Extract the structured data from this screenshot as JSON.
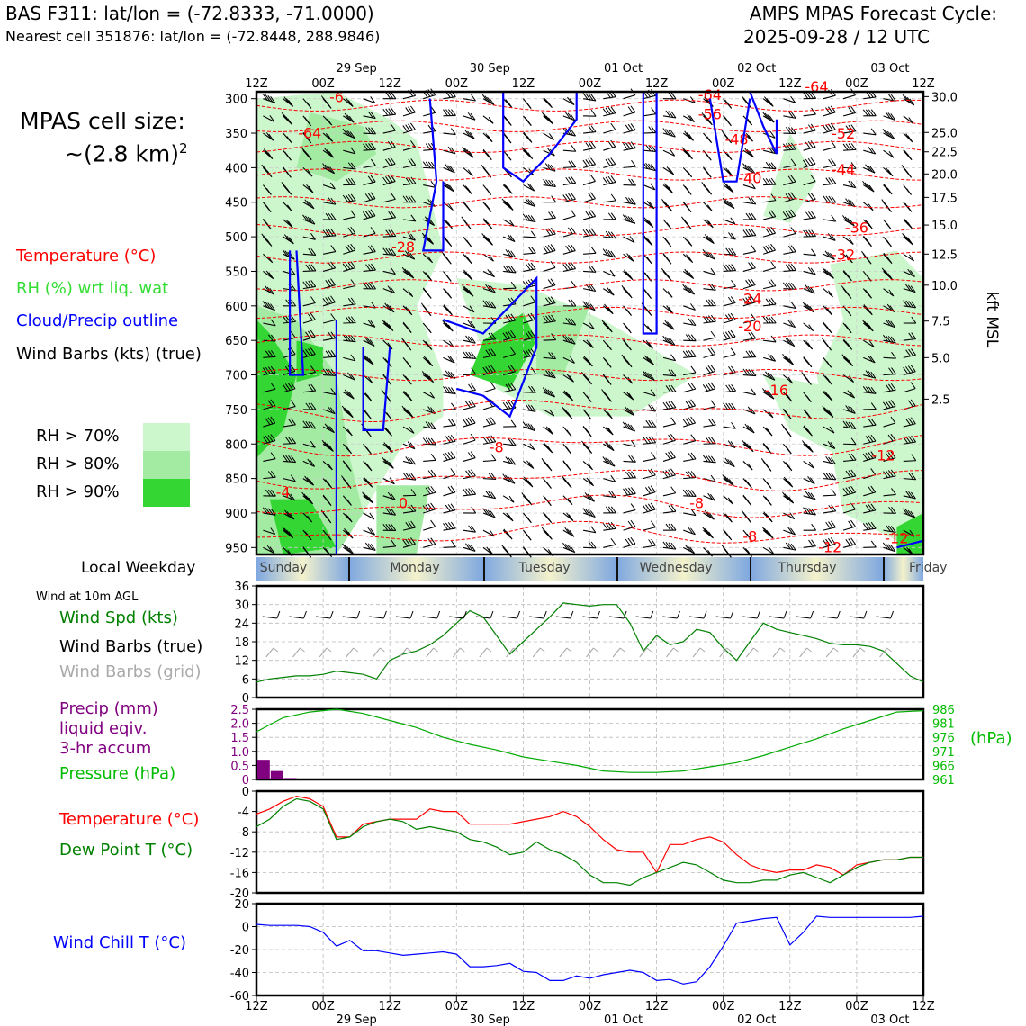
{
  "header": {
    "station_line": "BAS F311: lat/lon = (-72.8333, -71.0000)",
    "cell_line": "Nearest cell 351876: lat/lon = (-72.8448, 288.9846)",
    "forecast_label": "AMPS MPAS Forecast Cycle:",
    "forecast_cycle": "2025-09-28 / 12 UTC"
  },
  "left_panel": {
    "cell_size_label": "MPAS cell size:",
    "cell_size_value": "~(2.8 km)",
    "cell_size_exp": "2",
    "legend": {
      "temperature": "Temperature (°C)",
      "rh": "RH (%) wrt liq. wat",
      "cloud": "Cloud/Precip outline",
      "wind": "Wind Barbs (kts) (true)"
    },
    "rh_key": [
      {
        "label": "RH > 70%",
        "color": "#ccf7cc"
      },
      {
        "label": "RH > 80%",
        "color": "#a3eaa3"
      },
      {
        "label": "RH > 90%",
        "color": "#33d633"
      }
    ],
    "local_weekday_label": "Local Weekday",
    "wind_10m_label": "Wind at 10m AGL",
    "wind_panel_legend": {
      "speed": "Wind Spd (kts)",
      "barbs_true": "Wind Barbs (true)",
      "barbs_grid": "Wind Barbs (grid)"
    },
    "precip_legend": {
      "line1": "Precip (mm)",
      "line2": "liquid eqiv.",
      "line3": "3-hr accum",
      "pressure": "Pressure (hPa)"
    },
    "temp_legend": {
      "temp": "Temperature (°C)",
      "dew": "Dew Point T (°C)"
    },
    "windchill_legend": "Wind Chill T (°C)"
  },
  "time_axis": {
    "hour_labels": [
      "12Z",
      "00Z",
      "12Z",
      "00Z",
      "12Z",
      "00Z",
      "12Z",
      "00Z",
      "12Z",
      "00Z",
      "12Z"
    ],
    "date_labels": [
      "29 Sep",
      "30 Sep",
      "01 Oct",
      "02 Oct",
      "03 Oct"
    ]
  },
  "weekdays": [
    "Sunday",
    "Monday",
    "Tuesday",
    "Wednesday",
    "Thursday",
    "Friday"
  ],
  "colors": {
    "temperature": "#ff0000",
    "rh_green": "#33cc33",
    "cloud": "#0000ff",
    "precip": "#800080",
    "pressure": "#00aa00",
    "dew": "#008000",
    "windchill": "#0000ff",
    "barb_grid": "#aaaaaa",
    "weekday_blue": "#7fa8e0",
    "weekday_yellow": "#f4f2cc"
  },
  "chart_data": [
    {
      "type": "line",
      "name": "cross_section",
      "pressure_ticks": [
        300,
        350,
        400,
        450,
        500,
        550,
        600,
        650,
        700,
        750,
        800,
        850,
        900,
        950
      ],
      "kft_ticks": [
        "30.0",
        "25.0",
        "22.5",
        "20.0",
        "17.5",
        "15.0",
        "12.5",
        "10.0",
        "7.5",
        "5.0",
        "2.5"
      ],
      "kft_pressure": [
        297,
        349,
        377,
        409,
        443,
        483,
        525,
        570,
        622,
        675,
        735
      ],
      "ylabel_right": "kft MSL",
      "temperature_labels": [
        {
          "t": 4,
          "p": 357,
          "text": "-64"
        },
        {
          "t": 34,
          "p": 302,
          "text": "-64"
        },
        {
          "t": 42,
          "p": 290,
          "text": "-64"
        },
        {
          "t": 34,
          "p": 330,
          "text": "-56"
        },
        {
          "t": 6,
          "p": 305,
          "text": "-6"
        },
        {
          "t": 36,
          "p": 366,
          "text": "-48"
        },
        {
          "t": 44,
          "p": 358,
          "text": "-52"
        },
        {
          "t": 44,
          "p": 410,
          "text": "-44"
        },
        {
          "t": 37,
          "p": 422,
          "text": "-40"
        },
        {
          "t": 45,
          "p": 494,
          "text": "-36"
        },
        {
          "t": 44,
          "p": 533,
          "text": "-32"
        },
        {
          "t": 11,
          "p": 522,
          "text": "-28"
        },
        {
          "t": 37,
          "p": 597,
          "text": "-24"
        },
        {
          "t": 37,
          "p": 637,
          "text": "-20"
        },
        {
          "t": 39,
          "p": 729,
          "text": "-16"
        },
        {
          "t": 47,
          "p": 824,
          "text": "-12"
        },
        {
          "t": 18,
          "p": 812,
          "text": "-8"
        },
        {
          "t": 33,
          "p": 893,
          "text": "-8"
        },
        {
          "t": 37,
          "p": 941,
          "text": "-8"
        },
        {
          "t": 2,
          "p": 877,
          "text": "-4"
        },
        {
          "t": 11,
          "p": 893,
          "text": "0"
        },
        {
          "t": 43,
          "p": 957,
          "text": "-12"
        },
        {
          "t": 48,
          "p": 944,
          "text": "-12"
        }
      ]
    },
    {
      "type": "line",
      "name": "wind_10m",
      "ylim": [
        0,
        36
      ],
      "yticks": [
        0,
        6,
        12,
        18,
        24,
        30,
        36
      ],
      "x": [
        0,
        1,
        2,
        3,
        4,
        5,
        6,
        7,
        8,
        9,
        10,
        11,
        12,
        13,
        14,
        15,
        16,
        17,
        18,
        19,
        20,
        21,
        22,
        23,
        24,
        25,
        26,
        27,
        28,
        29,
        30,
        31,
        32,
        33,
        34,
        35,
        36,
        37,
        38,
        39,
        40,
        41,
        42,
        43,
        44,
        45,
        46,
        47,
        48,
        49,
        50
      ],
      "values": [
        5,
        6,
        6.5,
        7,
        7,
        7.5,
        8.5,
        8,
        7.5,
        6,
        12,
        14,
        15,
        17,
        20,
        24,
        28,
        26,
        20,
        14,
        18,
        22,
        26,
        30.5,
        30,
        29.5,
        30,
        30,
        24,
        15,
        20,
        17,
        18,
        22,
        21,
        16,
        12,
        18,
        24,
        22,
        21,
        20,
        19,
        17.5,
        17,
        17,
        16.5,
        15,
        11,
        7,
        5
      ]
    },
    {
      "type": "bar",
      "name": "precip",
      "ylim": [
        0,
        2.5
      ],
      "yticks": [
        "0",
        "0.5",
        "1.0",
        "1.5",
        "2.0",
        "2.5"
      ],
      "x": [
        1,
        2,
        3,
        4
      ],
      "values": [
        0.7,
        0.3,
        0.05,
        0.02
      ]
    },
    {
      "type": "line",
      "name": "pressure",
      "ylim": [
        961,
        986
      ],
      "yticks": [
        "961",
        "966",
        "971",
        "976",
        "981",
        "986"
      ],
      "yunit": "(hPa)",
      "x": [
        0,
        2,
        4,
        6,
        8,
        10,
        12,
        14,
        16,
        18,
        20,
        22,
        24,
        26,
        28,
        30,
        32,
        34,
        36,
        38,
        40,
        42,
        44,
        46,
        48,
        50
      ],
      "values": [
        978,
        983,
        985,
        986,
        984.5,
        982,
        979.5,
        976,
        973.5,
        971.5,
        969,
        967.5,
        966,
        964,
        963.5,
        963.5,
        964,
        965.5,
        967,
        969.5,
        972.5,
        975.5,
        979,
        982,
        985,
        985.5
      ]
    },
    {
      "type": "line",
      "name": "temp_dew",
      "ylim": [
        -20,
        0
      ],
      "yticks": [
        "0",
        "-4",
        "-8",
        "-12",
        "-16",
        "-20"
      ],
      "x": [
        0,
        1,
        2,
        3,
        4,
        5,
        6,
        7,
        8,
        9,
        10,
        11,
        12,
        13,
        14,
        15,
        16,
        17,
        18,
        19,
        20,
        21,
        22,
        23,
        24,
        25,
        26,
        27,
        28,
        29,
        30,
        31,
        32,
        33,
        34,
        35,
        36,
        37,
        38,
        39,
        40,
        41,
        42,
        43,
        44,
        45,
        46,
        47,
        48,
        49,
        50
      ],
      "series": [
        {
          "values": [
            -4.5,
            -3.5,
            -2,
            -1,
            -1.5,
            -3,
            -9,
            -9,
            -6.5,
            -6,
            -5.5,
            -5.5,
            -5.5,
            -3.5,
            -4,
            -4,
            -6.5,
            -6.5,
            -6.5,
            -6.5,
            -6,
            -5.5,
            -5,
            -4,
            -5,
            -7,
            -9.5,
            -11.5,
            -12,
            -12,
            -16,
            -10.5,
            -10.5,
            -9.5,
            -9,
            -10,
            -12.5,
            -14.5,
            -15.5,
            -16,
            -15.5,
            -15.5,
            -14.5,
            -15,
            -16.5,
            -14.5,
            -14,
            -13.5,
            -13.5,
            -13,
            -13
          ]
        },
        {
          "values": [
            -7,
            -5.5,
            -3,
            -1.5,
            -2,
            -3.5,
            -9.5,
            -9,
            -7,
            -6,
            -5.5,
            -6,
            -7.5,
            -7,
            -7.5,
            -8,
            -9.5,
            -10,
            -11,
            -12.5,
            -12,
            -10,
            -11.5,
            -12.5,
            -14,
            -16.5,
            -18,
            -18,
            -18.5,
            -17,
            -16,
            -15,
            -14,
            -14.5,
            -16,
            -17.5,
            -18,
            -18,
            -17.5,
            -17.5,
            -16.5,
            -16,
            -17,
            -18,
            -16.5,
            -15,
            -14,
            -13.5,
            -13.5,
            -13,
            -13
          ]
        }
      ]
    },
    {
      "type": "line",
      "name": "wind_chill",
      "ylim": [
        -60,
        20
      ],
      "yticks": [
        "20",
        "0",
        "-20",
        "-40",
        "-60"
      ],
      "x": [
        0,
        1,
        2,
        3,
        4,
        5,
        6,
        7,
        8,
        9,
        10,
        11,
        12,
        13,
        14,
        15,
        16,
        17,
        18,
        19,
        20,
        21,
        22,
        23,
        24,
        25,
        26,
        27,
        28,
        29,
        30,
        31,
        32,
        33,
        34,
        35,
        36,
        37,
        38,
        39,
        40,
        41,
        42,
        43,
        44,
        45,
        46,
        47,
        48,
        49,
        50
      ],
      "values": [
        2,
        1,
        1,
        1,
        0,
        -5,
        -17,
        -12,
        -21,
        -21,
        -23,
        -25,
        -24,
        -23,
        -22,
        -24,
        -35,
        -35,
        -34,
        -32,
        -39,
        -40,
        -47,
        -47,
        -43,
        -45,
        -42,
        -40,
        -38,
        -40,
        -47,
        -46,
        -50,
        -48,
        -35,
        -17,
        3,
        5,
        7,
        8,
        -16,
        -5,
        9,
        8,
        8,
        8,
        8,
        8,
        8,
        8,
        9
      ]
    }
  ]
}
